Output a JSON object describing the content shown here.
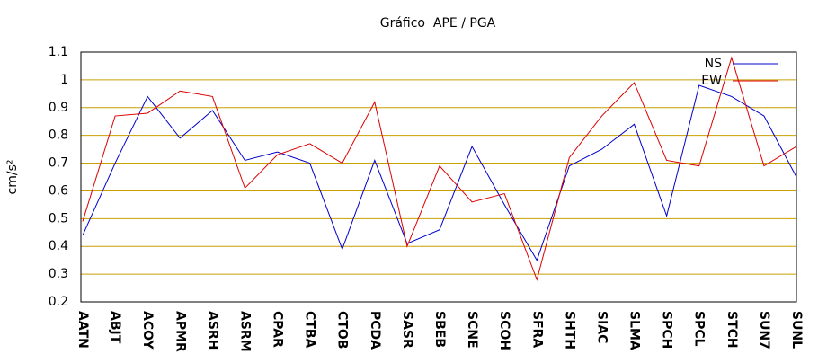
{
  "chart_data": {
    "type": "line",
    "title": "Gráfico  APE / PGA",
    "y_label": "cm/s²",
    "categories": [
      "AATN",
      "ABJT",
      "ACOY",
      "APMR",
      "ASRH",
      "ASRM",
      "CPAR",
      "CTBA",
      "CTOB",
      "PCDA",
      "SASR",
      "SBEB",
      "SCNE",
      "SCOH",
      "SFRA",
      "SHTH",
      "SIAC",
      "SLMA",
      "SPCH",
      "SPCL",
      "STCH",
      "SUN7",
      "SUNL"
    ],
    "series": [
      {
        "name": "NS",
        "color": "#0000cc",
        "values": [
          0.44,
          0.7,
          0.94,
          0.79,
          0.89,
          0.71,
          0.74,
          0.7,
          0.39,
          0.71,
          0.41,
          0.46,
          0.76,
          0.55,
          0.35,
          0.69,
          0.75,
          0.84,
          0.51,
          0.98,
          0.94,
          0.87,
          0.65
        ]
      },
      {
        "name": "EW",
        "color": "#dd0000",
        "values": [
          0.49,
          0.87,
          0.88,
          0.96,
          0.94,
          0.61,
          0.73,
          0.77,
          0.7,
          0.92,
          0.4,
          0.69,
          0.56,
          0.59,
          0.28,
          0.72,
          0.87,
          0.99,
          0.71,
          0.69,
          1.08,
          0.69,
          0.76
        ]
      }
    ],
    "ylim": [
      0.2,
      1.1
    ],
    "yticks": [
      0.2,
      0.3,
      0.4,
      0.5,
      0.6,
      0.7,
      0.8,
      0.9,
      1,
      1.1
    ],
    "grid": true,
    "grid_color": "#c8a000",
    "legend": "upper right"
  }
}
